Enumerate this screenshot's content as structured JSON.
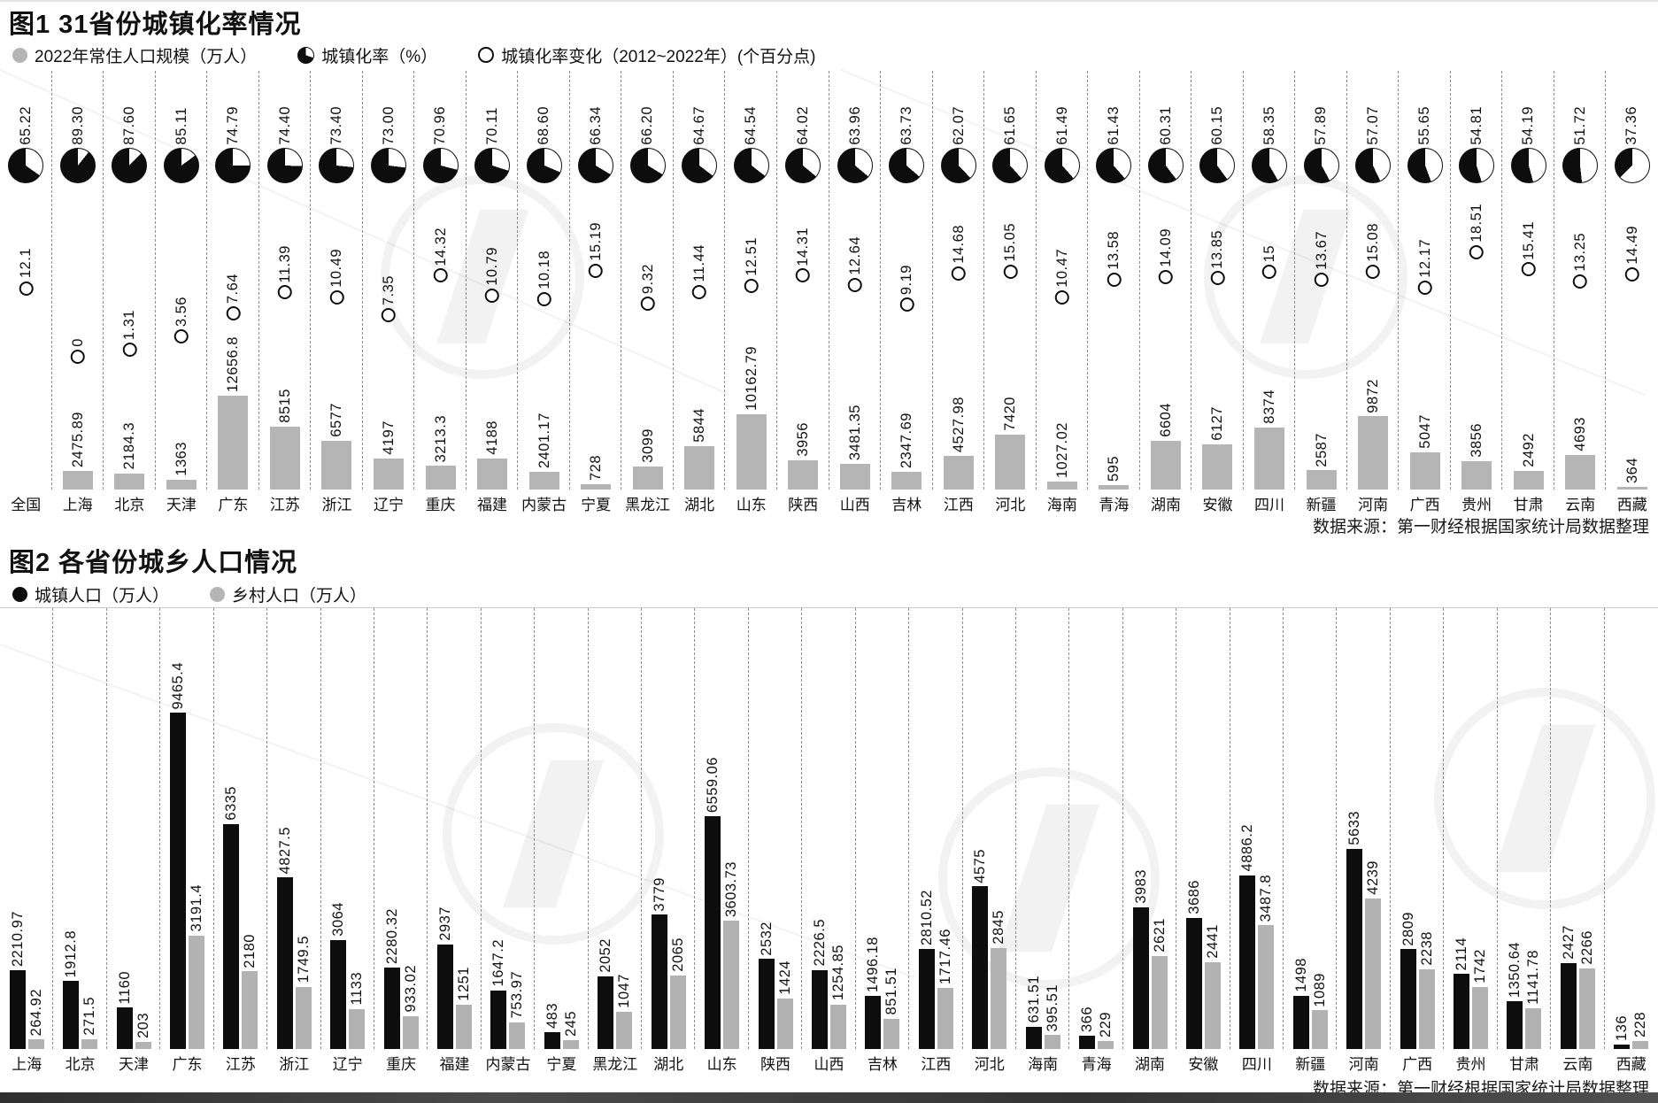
{
  "source_note": "数据来源：第一财经根据国家统计局数据整理",
  "chart_data": [
    {
      "type": "bar",
      "subtype": "combo-pie-scatter-bar",
      "title": "图1 31省份城镇化率情况",
      "legend": [
        {
          "marker": "gray-dot",
          "label": "2022年常住人口规模（万人）"
        },
        {
          "marker": "pie",
          "label": "城镇化率（%）"
        },
        {
          "marker": "ring",
          "label": "城镇化率变化（2012~2022年）(个百分点)"
        }
      ],
      "categories": [
        "全国",
        "上海",
        "北京",
        "天津",
        "广东",
        "江苏",
        "浙江",
        "辽宁",
        "重庆",
        "福建",
        "内蒙古",
        "宁夏",
        "黑龙江",
        "湖北",
        "山东",
        "陕西",
        "山西",
        "吉林",
        "江西",
        "河北",
        "海南",
        "青海",
        "湖南",
        "安徽",
        "四川",
        "新疆",
        "河南",
        "广西",
        "贵州",
        "甘肃",
        "云南",
        "西藏"
      ],
      "series": [
        {
          "name": "城镇化率（%）",
          "type": "pie-icon",
          "values": [
            65.22,
            89.3,
            87.6,
            85.11,
            74.79,
            74.4,
            73.4,
            73,
            70.96,
            70.11,
            68.6,
            66.34,
            66.2,
            64.67,
            64.54,
            64.02,
            63.96,
            63.73,
            62.07,
            61.65,
            61.49,
            61.43,
            60.31,
            60.15,
            58.35,
            57.89,
            57.07,
            55.65,
            54.81,
            54.19,
            51.72,
            37.36
          ],
          "labels": [
            "65.22",
            "89.30",
            "87.60",
            "85.11",
            "74.79",
            "74.40",
            "73.40",
            "73.00",
            "70.96",
            "70.11",
            "68.60",
            "66.34",
            "66.20",
            "64.67",
            "64.54",
            "64.02",
            "63.96",
            "63.73",
            "62.07",
            "61.65",
            "61.49",
            "61.43",
            "60.31",
            "60.15",
            "58.35",
            "57.89",
            "57.07",
            "55.65",
            "54.81",
            "54.19",
            "51.72",
            "37.36"
          ]
        },
        {
          "name": "城镇化率变化（2012~2022年）(个百分点)",
          "type": "scatter",
          "values": [
            12.1,
            0,
            1.31,
            3.56,
            7.64,
            11.39,
            10.49,
            7.35,
            14.32,
            10.79,
            10.18,
            15.19,
            9.32,
            11.44,
            12.51,
            14.31,
            12.64,
            9.19,
            14.68,
            15.05,
            10.47,
            13.58,
            14.09,
            13.85,
            15,
            13.67,
            15.08,
            12.17,
            18.51,
            15.41,
            13.25,
            14.49
          ],
          "labels": [
            "12.1",
            "0",
            "1.31",
            "3.56",
            "7.64",
            "11.39",
            "10.49",
            "7.35",
            "14.32",
            "10.79",
            "10.18",
            "15.19",
            "9.32",
            "11.44",
            "12.51",
            "14.31",
            "12.64",
            "9.19",
            "14.68",
            "15.05",
            "10.47",
            "13.58",
            "14.09",
            "13.85",
            "15",
            "13.67",
            "15.08",
            "12.17",
            "18.51",
            "15.41",
            "13.25",
            "14.49"
          ]
        },
        {
          "name": "2022年常住人口规模（万人）",
          "type": "bar",
          "values": [
            null,
            2475.89,
            2184.3,
            1363,
            12656.8,
            8515,
            6577,
            4197,
            3213.3,
            4188,
            2401.17,
            728,
            3099,
            5844,
            10162.79,
            3956,
            3481.35,
            2347.69,
            4527.98,
            7420,
            1027.02,
            595,
            6604,
            6127,
            8374,
            2587,
            9872,
            5047,
            3856,
            2492,
            4693,
            364
          ],
          "labels": [
            "",
            "2475.89",
            "2184.3",
            "1363",
            "12656.8",
            "8515",
            "6577",
            "4197",
            "3213.3",
            "4188",
            "2401.17",
            "728",
            "3099",
            "5844",
            "10162.79",
            "3956",
            "3481.35",
            "2347.69",
            "4527.98",
            "7420",
            "1027.02",
            "595",
            "6604",
            "6127",
            "8374",
            "2587",
            "9872",
            "5047",
            "3856",
            "2492",
            "4693",
            "364"
          ]
        }
      ],
      "ylim_bar": [
        0,
        12656.8
      ],
      "ylim_scatter": [
        0,
        18.51
      ],
      "grid": "dashed-vertical-separators",
      "legend_position": "top",
      "source": "数据来源：第一财经根据国家统计局数据整理"
    },
    {
      "type": "bar",
      "subtype": "grouped-bar",
      "title": "图2 各省份城乡人口情况",
      "legend": [
        {
          "marker": "black-dot",
          "label": "城镇人口（万人）"
        },
        {
          "marker": "gray-dot",
          "label": "乡村人口（万人）"
        }
      ],
      "categories": [
        "上海",
        "北京",
        "天津",
        "广东",
        "江苏",
        "浙江",
        "辽宁",
        "重庆",
        "福建",
        "内蒙古",
        "宁夏",
        "黑龙江",
        "湖北",
        "山东",
        "陕西",
        "山西",
        "吉林",
        "江西",
        "河北",
        "海南",
        "青海",
        "湖南",
        "安徽",
        "四川",
        "新疆",
        "河南",
        "广西",
        "贵州",
        "甘肃",
        "云南",
        "西藏"
      ],
      "series": [
        {
          "name": "城镇人口（万人）",
          "color": "#0d0d0d",
          "values": [
            2210.97,
            1912.8,
            1160,
            9465.4,
            6335,
            4827.5,
            3064,
            2280.32,
            2937,
            1647.2,
            483,
            2052,
            3779,
            6559.06,
            2532,
            2226.5,
            1496.18,
            2810.52,
            4575,
            631.51,
            366,
            3983,
            3686,
            4886.2,
            1498,
            5633,
            2809,
            2114,
            1350.64,
            2427,
            136
          ],
          "labels": [
            "2210.97",
            "1912.8",
            "1160",
            "9465.4",
            "6335",
            "4827.5",
            "3064",
            "2280.32",
            "2937",
            "1647.2",
            "483",
            "2052",
            "3779",
            "6559.06",
            "2532",
            "2226.5",
            "1496.18",
            "2810.52",
            "4575",
            "631.51",
            "366",
            "3983",
            "3686",
            "4886.2",
            "1498",
            "5633",
            "2809",
            "2114",
            "1350.64",
            "2427",
            "136"
          ]
        },
        {
          "name": "乡村人口（万人）",
          "color": "#b2b2b2",
          "values": [
            264.92,
            271.5,
            203,
            3191.4,
            2180,
            1749.5,
            1133,
            933.02,
            1251,
            753.97,
            245,
            1047,
            2065,
            3603.73,
            1424,
            1254.85,
            851.51,
            1717.46,
            2845,
            395.51,
            229,
            2621,
            2441,
            3487.8,
            1089,
            4239,
            2238,
            1742,
            1141.78,
            2266,
            228
          ],
          "labels": [
            "264.92",
            "271.5",
            "203",
            "3191.4",
            "2180",
            "1749.5",
            "1133",
            "933.02",
            "1251",
            "753.97",
            "245",
            "1047",
            "2065",
            "3603.73",
            "1424",
            "1254.85",
            "851.51",
            "1717.46",
            "2845",
            "395.51",
            "229",
            "2621",
            "2441",
            "3487.8",
            "1089",
            "4239",
            "2238",
            "1742",
            "1141.78",
            "2266",
            "228"
          ]
        }
      ],
      "ylim": [
        0,
        9465.4
      ],
      "grid": "dashed-vertical-separators",
      "legend_position": "top",
      "source": "数据来源：第一财经根据国家统计局数据整理"
    }
  ],
  "colors": {
    "bar_gray": "#b5b5b5",
    "bar_black": "#0d0d0d",
    "separator": "#8d8d8d"
  }
}
